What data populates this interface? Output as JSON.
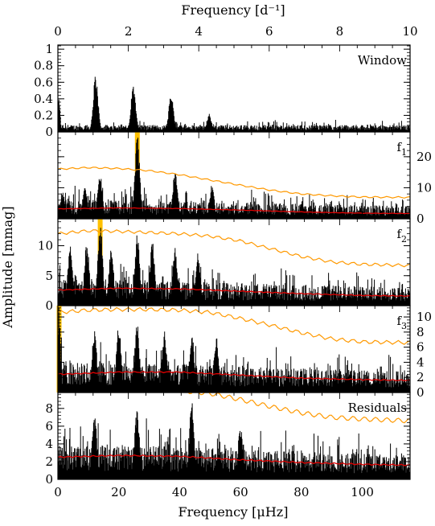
{
  "chart_data": {
    "type": "line",
    "top_axis": {
      "label": "Frequency [d⁻¹]",
      "range": [
        0,
        10
      ],
      "ticks": [
        "0",
        "2",
        "4",
        "6",
        "8",
        "10"
      ]
    },
    "bottom_axis": {
      "label": "Frequency [μHz]",
      "range": [
        0,
        115.7
      ],
      "ticks": [
        "0",
        "20",
        "40",
        "60",
        "80",
        "100"
      ]
    },
    "ylabel": "Amplitude [mmag]",
    "colors": {
      "amplitude": "#000000",
      "noise": "#e00000",
      "threshold": "#ff9900",
      "highlight": "#ffc000"
    },
    "panels": [
      {
        "label": "Window",
        "label_sub": "",
        "y_side": "left",
        "ylim": [
          0,
          1.05
        ],
        "yticks": [
          "0",
          "0.2",
          "0.4",
          "0.6",
          "0.8",
          "1"
        ],
        "ytick_values": [
          0,
          0.2,
          0.4,
          0.6,
          0.8,
          1
        ],
        "base_level": 0.04,
        "peaks": [
          {
            "freq_uHz": 0.3,
            "amp": 0.42
          },
          {
            "freq_uHz": 12.4,
            "amp": 0.7
          },
          {
            "freq_uHz": 24.8,
            "amp": 0.58
          },
          {
            "freq_uHz": 37.2,
            "amp": 0.47
          },
          {
            "freq_uHz": 49.7,
            "amp": 0.22
          }
        ],
        "noise_curve": null,
        "threshold_curve": null,
        "highlight_uHz": null
      },
      {
        "label": "f",
        "label_sub": "1",
        "y_side": "right",
        "ylim": [
          0,
          28
        ],
        "yticks": [
          "0",
          "10",
          "20"
        ],
        "ytick_values": [
          0,
          10,
          20
        ],
        "base_level": 3.0,
        "peaks": [
          {
            "freq_uHz": 1.5,
            "amp": 9
          },
          {
            "freq_uHz": 8.9,
            "amp": 11
          },
          {
            "freq_uHz": 13.8,
            "amp": 15
          },
          {
            "freq_uHz": 26.1,
            "amp": 27
          },
          {
            "freq_uHz": 38.5,
            "amp": 16
          },
          {
            "freq_uHz": 50.6,
            "amp": 11
          }
        ],
        "noise_curve": {
          "x": [
            0,
            20,
            40,
            60,
            80,
            100,
            115.7
          ],
          "y": [
            3.2,
            3.5,
            3.3,
            2.8,
            2.2,
            1.8,
            1.7
          ]
        },
        "threshold_curve": {
          "x": [
            0,
            10,
            20,
            30,
            40,
            50,
            60,
            70,
            80,
            90,
            100,
            115.7
          ],
          "y": [
            16.0,
            16.5,
            16.2,
            15.5,
            14.2,
            12.5,
            10.8,
            9.2,
            8.0,
            7.4,
            7.0,
            6.9
          ]
        },
        "highlight_uHz": 26.1
      },
      {
        "label": "f",
        "label_sub": "2",
        "y_side": "left",
        "ylim": [
          0,
          14.5
        ],
        "yticks": [
          "0",
          "5",
          "10"
        ],
        "ytick_values": [
          0,
          5,
          10
        ],
        "base_level": 2.2,
        "peaks": [
          {
            "freq_uHz": 4.0,
            "amp": 10
          },
          {
            "freq_uHz": 9.5,
            "amp": 11
          },
          {
            "freq_uHz": 13.9,
            "amp": 14.5
          },
          {
            "freq_uHz": 17.5,
            "amp": 10
          },
          {
            "freq_uHz": 26.1,
            "amp": 12.5
          },
          {
            "freq_uHz": 31.0,
            "amp": 11
          },
          {
            "freq_uHz": 38.5,
            "amp": 10
          },
          {
            "freq_uHz": 46.0,
            "amp": 9
          }
        ],
        "noise_curve": {
          "x": [
            0,
            20,
            40,
            60,
            80,
            100,
            115.7
          ],
          "y": [
            2.6,
            2.9,
            2.8,
            2.4,
            2.0,
            1.7,
            1.6
          ]
        },
        "threshold_curve": {
          "x": [
            0,
            10,
            20,
            30,
            40,
            50,
            60,
            70,
            80,
            90,
            100,
            115.7
          ],
          "y": [
            12.0,
            12.5,
            12.4,
            12.2,
            12.0,
            11.6,
            10.8,
            9.5,
            8.2,
            7.3,
            6.9,
            6.7
          ]
        },
        "highlight_uHz": 13.9
      },
      {
        "label": "f",
        "label_sub": "3",
        "y_side": "right",
        "ylim": [
          0,
          11.5
        ],
        "yticks": [
          "0",
          "2",
          "4",
          "6",
          "8",
          "10"
        ],
        "ytick_values": [
          0,
          2,
          4,
          6,
          8,
          10
        ],
        "base_level": 2.0,
        "peaks": [
          {
            "freq_uHz": 0.4,
            "amp": 11.5
          },
          {
            "freq_uHz": 12.0,
            "amp": 8.5
          },
          {
            "freq_uHz": 20.0,
            "amp": 9
          },
          {
            "freq_uHz": 26.0,
            "amp": 9.5
          },
          {
            "freq_uHz": 35.0,
            "amp": 8.5
          },
          {
            "freq_uHz": 44.0,
            "amp": 8
          },
          {
            "freq_uHz": 52.0,
            "amp": 7.5
          }
        ],
        "noise_curve": {
          "x": [
            0,
            20,
            40,
            60,
            80,
            100,
            115.7
          ],
          "y": [
            2.4,
            2.7,
            2.7,
            2.3,
            1.9,
            1.7,
            1.6
          ]
        },
        "threshold_curve": {
          "x": [
            0,
            10,
            20,
            30,
            40,
            50,
            60,
            70,
            80,
            90,
            100,
            115.7
          ],
          "y": [
            10.6,
            10.9,
            11.0,
            11.0,
            10.9,
            10.6,
            9.8,
            8.9,
            7.9,
            7.1,
            6.7,
            6.6
          ]
        },
        "highlight_uHz": 0.4
      },
      {
        "label": "Residuals",
        "label_sub": "",
        "y_side": "left",
        "ylim": [
          0,
          9.8
        ],
        "yticks": [
          "0",
          "2",
          "4",
          "6",
          "8"
        ],
        "ytick_values": [
          0,
          2,
          4,
          6,
          8
        ],
        "base_level": 2.0,
        "peaks": [
          {
            "freq_uHz": 12.0,
            "amp": 7.5
          },
          {
            "freq_uHz": 26.0,
            "amp": 8.0
          },
          {
            "freq_uHz": 44.0,
            "amp": 9.0
          },
          {
            "freq_uHz": 60.0,
            "amp": 6.0
          }
        ],
        "noise_curve": {
          "x": [
            0,
            20,
            40,
            60,
            80,
            100,
            115.7
          ],
          "y": [
            2.5,
            2.7,
            2.6,
            2.2,
            1.9,
            1.7,
            1.6
          ]
        },
        "threshold_curve": {
          "x": [
            40,
            50,
            60,
            70,
            80,
            90,
            100,
            115.7
          ],
          "y": [
            10.0,
            9.7,
            9.0,
            8.2,
            7.5,
            7.0,
            6.8,
            6.6
          ]
        },
        "highlight_uHz": null
      }
    ]
  }
}
